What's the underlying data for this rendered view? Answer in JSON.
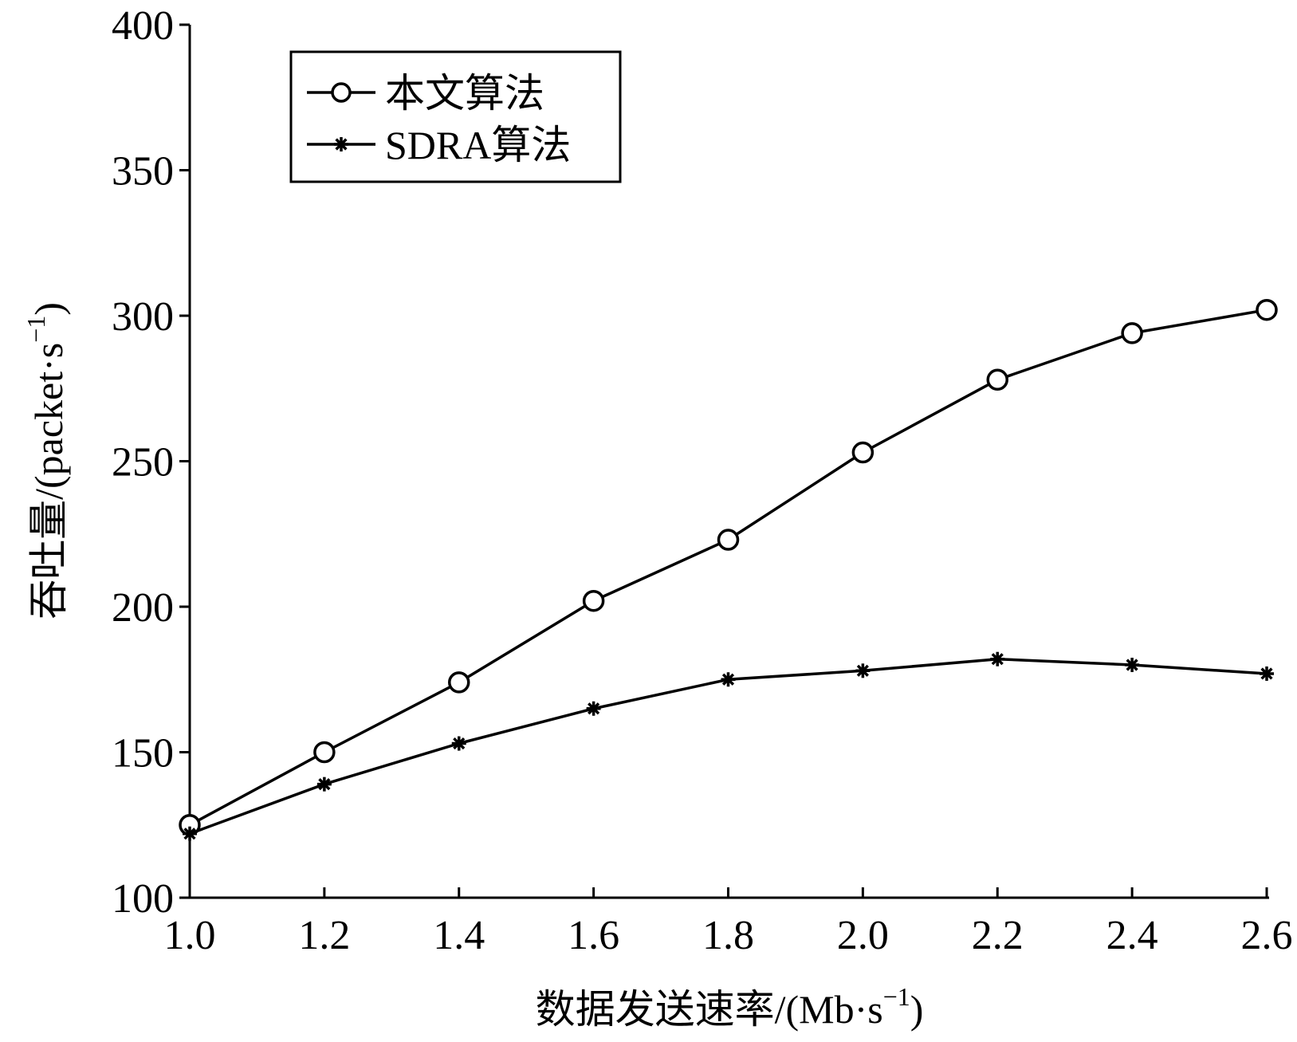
{
  "chart_data": {
    "type": "line",
    "x": [
      1.0,
      1.2,
      1.4,
      1.6,
      1.8,
      2.0,
      2.2,
      2.4,
      2.6
    ],
    "x_tick_labels": [
      "1.0",
      "1.2",
      "1.4",
      "1.6",
      "1.8",
      "2.0",
      "2.2",
      "2.4",
      "2.6"
    ],
    "y_ticks": [
      100,
      150,
      200,
      250,
      300,
      350,
      400
    ],
    "y_tick_labels": [
      "100",
      "150",
      "200",
      "250",
      "300",
      "350",
      "400"
    ],
    "xlim": [
      1.0,
      2.6
    ],
    "ylim": [
      100,
      400
    ],
    "xlabel": "数据发送速率/(Mb·s",
    "xlabel_sup": "−1",
    "xlabel_close": ")",
    "ylabel": "吞吐量/(packet·s",
    "ylabel_sup": "−1",
    "ylabel_close": ")",
    "grid": false,
    "legend_position": "top-left",
    "series": [
      {
        "name": "本文算法",
        "marker": "open-circle",
        "color": "#000000",
        "values": [
          125,
          150,
          174,
          202,
          223,
          253,
          278,
          294,
          302
        ]
      },
      {
        "name": "SDRA算法",
        "marker": "asterisk",
        "color": "#000000",
        "values": [
          122,
          139,
          153,
          165,
          175,
          178,
          182,
          180,
          177
        ]
      }
    ]
  }
}
